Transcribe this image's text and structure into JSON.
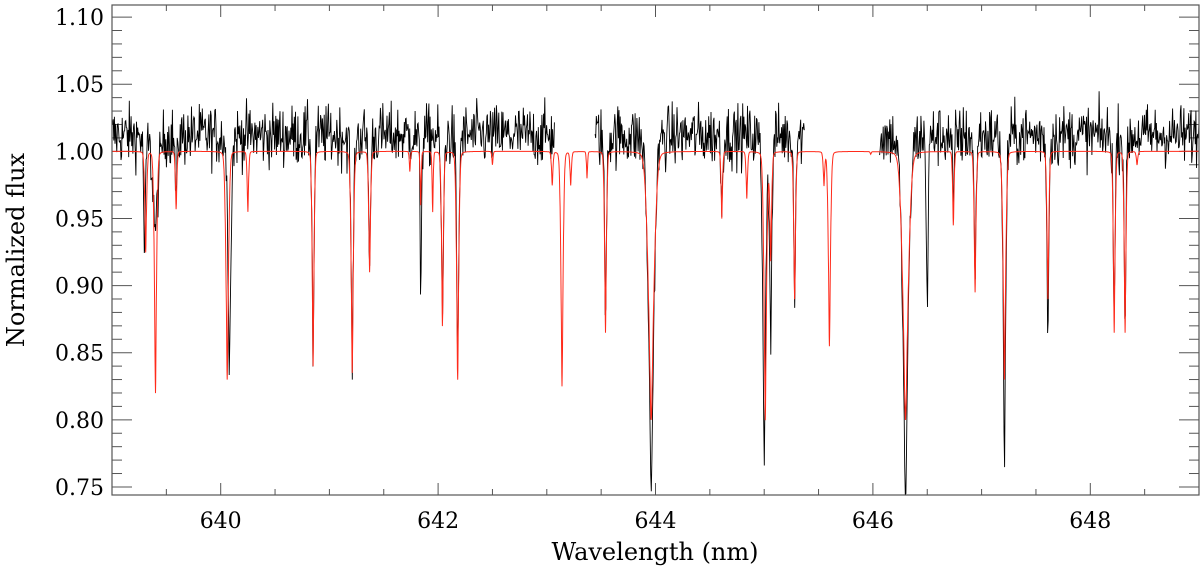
{
  "chart_data": {
    "type": "line",
    "title": "",
    "xlabel": "Wavelength (nm)",
    "ylabel": "Normalized flux",
    "xlim": [
      639.0,
      649.0
    ],
    "ylim": [
      0.744,
      1.109
    ],
    "xticks": [
      640,
      642,
      644,
      646,
      648
    ],
    "xtick_labels": [
      "640",
      "642",
      "644",
      "646",
      "648"
    ],
    "yticks": [
      0.75,
      0.8,
      0.85,
      0.9,
      0.95,
      1.0,
      1.05,
      1.1
    ],
    "ytick_labels": [
      "0.75",
      "0.80",
      "0.85",
      "0.90",
      "0.95",
      "1.00",
      "1.05",
      "1.10"
    ],
    "x_minor_step": 0.5,
    "y_minor_step": 0.01,
    "grid": false,
    "legend": "none",
    "series": [
      {
        "kind": "model",
        "color": "#ff2a1a",
        "continuum": 1.0,
        "lines": [
          [
            639.31,
            0.925,
            0.01
          ],
          [
            639.4,
            0.82,
            0.012
          ],
          [
            639.59,
            0.957,
            0.008
          ],
          [
            640.06,
            0.83,
            0.014
          ],
          [
            640.25,
            0.955,
            0.008
          ],
          [
            640.85,
            0.84,
            0.01
          ],
          [
            641.21,
            0.835,
            0.012
          ],
          [
            641.37,
            0.91,
            0.01
          ],
          [
            641.74,
            0.985,
            0.006
          ],
          [
            641.84,
            0.96,
            0.006
          ],
          [
            641.95,
            0.955,
            0.006
          ],
          [
            642.04,
            0.87,
            0.01
          ],
          [
            642.18,
            0.83,
            0.012
          ],
          [
            642.5,
            0.99,
            0.006
          ],
          [
            643.05,
            0.975,
            0.008
          ],
          [
            643.14,
            0.825,
            0.012
          ],
          [
            643.22,
            0.975,
            0.008
          ],
          [
            643.37,
            0.98,
            0.006
          ],
          [
            643.54,
            0.865,
            0.01
          ],
          [
            643.96,
            0.8,
            0.03
          ],
          [
            644.61,
            0.95,
            0.008
          ],
          [
            644.84,
            0.965,
            0.008
          ],
          [
            645.01,
            0.8,
            0.014
          ],
          [
            645.06,
            0.92,
            0.01
          ],
          [
            645.28,
            0.89,
            0.01
          ],
          [
            645.55,
            0.975,
            0.008
          ],
          [
            645.6,
            0.855,
            0.012
          ],
          [
            645.98,
            0.998,
            0.006
          ],
          [
            646.3,
            0.8,
            0.03
          ],
          [
            646.74,
            0.945,
            0.008
          ],
          [
            646.94,
            0.895,
            0.01
          ],
          [
            647.21,
            0.83,
            0.014
          ],
          [
            647.61,
            0.89,
            0.01
          ],
          [
            648.22,
            0.865,
            0.01
          ],
          [
            648.32,
            0.865,
            0.01
          ],
          [
            648.43,
            0.99,
            0.008
          ]
        ]
      },
      {
        "kind": "observed",
        "color": "#000000",
        "continuum": 1.012,
        "gaps": [
          [
            643.07,
            643.44
          ],
          [
            645.37,
            646.06
          ]
        ],
        "lines": [
          [
            639.3,
            0.915,
            0.01
          ],
          [
            639.4,
            0.94,
            0.03
          ],
          [
            639.59,
            0.96,
            0.01
          ],
          [
            640.08,
            0.84,
            0.016
          ],
          [
            640.85,
            0.835,
            0.01
          ],
          [
            641.21,
            0.835,
            0.012
          ],
          [
            641.37,
            0.91,
            0.01
          ],
          [
            641.84,
            0.89,
            0.008
          ],
          [
            642.04,
            0.87,
            0.012
          ],
          [
            642.18,
            0.84,
            0.012
          ],
          [
            643.54,
            0.865,
            0.01
          ],
          [
            643.96,
            0.75,
            0.03
          ],
          [
            644.61,
            0.95,
            0.008
          ],
          [
            645.0,
            0.77,
            0.016
          ],
          [
            645.06,
            0.85,
            0.012
          ],
          [
            645.28,
            0.89,
            0.01
          ],
          [
            646.3,
            0.74,
            0.03
          ],
          [
            646.5,
            0.88,
            0.01
          ],
          [
            646.74,
            0.945,
            0.008
          ],
          [
            646.94,
            0.895,
            0.01
          ],
          [
            647.21,
            0.76,
            0.014
          ],
          [
            647.61,
            0.85,
            0.01
          ],
          [
            648.22,
            0.87,
            0.01
          ],
          [
            648.32,
            0.865,
            0.01
          ]
        ]
      }
    ]
  }
}
